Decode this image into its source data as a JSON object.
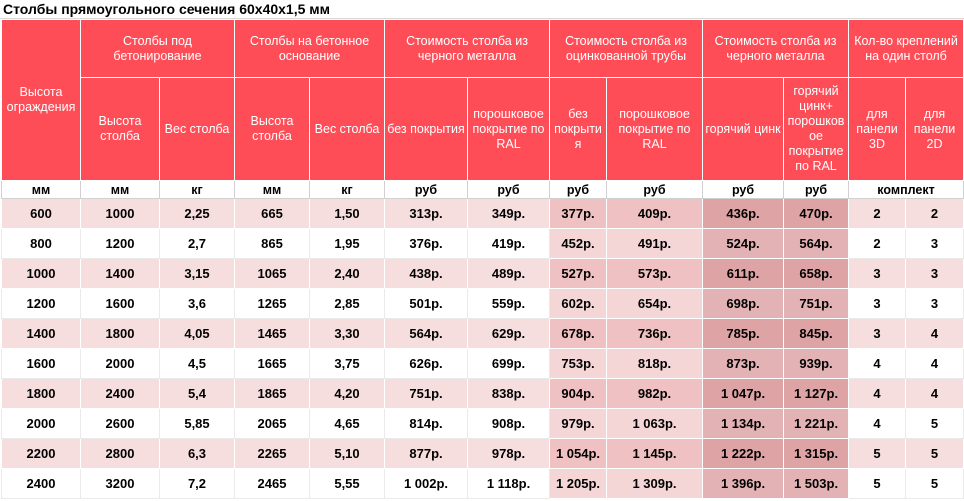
{
  "title": "Столбы прямоугольного сечения 60х40х1,5 мм",
  "header": {
    "height_fence": "Высота ограждения",
    "posts_concreting": "Столбы под бетонирование",
    "posts_concrete_base": "Столбы на бетонное основание",
    "cost_black": "Стоимость столба из черного металла",
    "cost_galvanized": "Стоимость столба из оцинкованной трубы",
    "cost_black_2": "Стоимость столба из черного металла",
    "fasteners": "Кол-во креплений на один столб",
    "post_height": "Высота столба",
    "post_weight": "Вес столба",
    "post_height_2": "Высота столба",
    "post_weight_2": "Вес столба",
    "no_coating": "без покрытия",
    "powder_ral": "порошковое покрытие по RAL",
    "no_coating_2": "без покрыти я",
    "powder_ral_2": "порошковое покрытие по RAL",
    "hot_zinc": "горячий цинк",
    "hot_zinc_powder": "горячий цинк+ порошков ое покрытие по RAL",
    "panel_3d": "для панели 3D",
    "panel_2d": "для панели 2D"
  },
  "units": [
    "мм",
    "мм",
    "кг",
    "мм",
    "кг",
    "руб",
    "руб",
    "руб",
    "руб",
    "руб",
    "руб",
    "комплект"
  ],
  "rows": [
    [
      "600",
      "1000",
      "2,25",
      "665",
      "1,50",
      "313р.",
      "349р.",
      "377р.",
      "409р.",
      "436р.",
      "470р.",
      "2",
      "2"
    ],
    [
      "800",
      "1200",
      "2,7",
      "865",
      "1,95",
      "376р.",
      "419р.",
      "452р.",
      "491р.",
      "524р.",
      "564р.",
      "2",
      "3"
    ],
    [
      "1000",
      "1400",
      "3,15",
      "1065",
      "2,40",
      "438р.",
      "489р.",
      "527р.",
      "573р.",
      "611р.",
      "658р.",
      "3",
      "3"
    ],
    [
      "1200",
      "1600",
      "3,6",
      "1265",
      "2,85",
      "501р.",
      "559р.",
      "602р.",
      "654р.",
      "698р.",
      "751р.",
      "3",
      "3"
    ],
    [
      "1400",
      "1800",
      "4,05",
      "1465",
      "3,30",
      "564р.",
      "629р.",
      "678р.",
      "736р.",
      "785р.",
      "845р.",
      "3",
      "4"
    ],
    [
      "1600",
      "2000",
      "4,5",
      "1665",
      "3,75",
      "626р.",
      "699р.",
      "753р.",
      "818р.",
      "873р.",
      "939р.",
      "4",
      "4"
    ],
    [
      "1800",
      "2400",
      "5,4",
      "1865",
      "4,20",
      "751р.",
      "838р.",
      "904р.",
      "982р.",
      "1 047р.",
      "1 127р.",
      "4",
      "4"
    ],
    [
      "2000",
      "2600",
      "5,85",
      "2065",
      "4,65",
      "814р.",
      "908р.",
      "979р.",
      "1 063р.",
      "1 134р.",
      "1 221р.",
      "4",
      "5"
    ],
    [
      "2200",
      "2800",
      "6,3",
      "2265",
      "5,10",
      "877р.",
      "978р.",
      "1 054р.",
      "1 145р.",
      "1 222р.",
      "1 315р.",
      "5",
      "5"
    ],
    [
      "2400",
      "3200",
      "7,2",
      "2465",
      "5,55",
      "1 002р.",
      "1 118р.",
      "1 205р.",
      "1 309р.",
      "1 396р.",
      "1 503р.",
      "5",
      "5"
    ]
  ],
  "colors": {
    "header_bg": "#ff4d58",
    "row_light": "#f7dede",
    "galv_light": "#efc1c2",
    "zinc_light": "#dda3a5"
  }
}
